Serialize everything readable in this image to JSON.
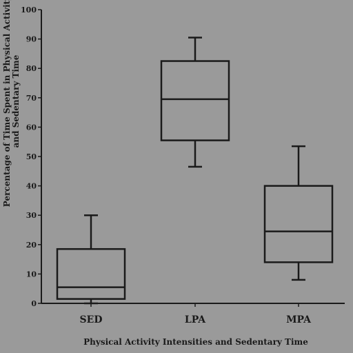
{
  "chart_data": {
    "type": "box",
    "categories": [
      "SED",
      "LPA",
      "MPA"
    ],
    "boxes": [
      {
        "category": "SED",
        "min": 0,
        "q1": 1.5,
        "median": 5.5,
        "q3": 18.5,
        "max": 30
      },
      {
        "category": "LPA",
        "min": 46.5,
        "q1": 55.5,
        "median": 69.5,
        "q3": 82.5,
        "max": 90.5
      },
      {
        "category": "MPA",
        "min": 8,
        "q1": 14,
        "median": 24.5,
        "q3": 40,
        "max": 53.5
      }
    ],
    "xlabel": "Physical Activity Intensities and Sedentary Time",
    "ylabel": "Percentage of Time Spent in Physical Activity and Sedentary Time",
    "ylim": [
      0,
      100
    ],
    "yticks": [
      0,
      10,
      20,
      30,
      40,
      50,
      60,
      70,
      80,
      90,
      100
    ],
    "grid": false,
    "colors": {
      "background": "#9a9a9a",
      "ink": "#1a1a1a"
    }
  }
}
